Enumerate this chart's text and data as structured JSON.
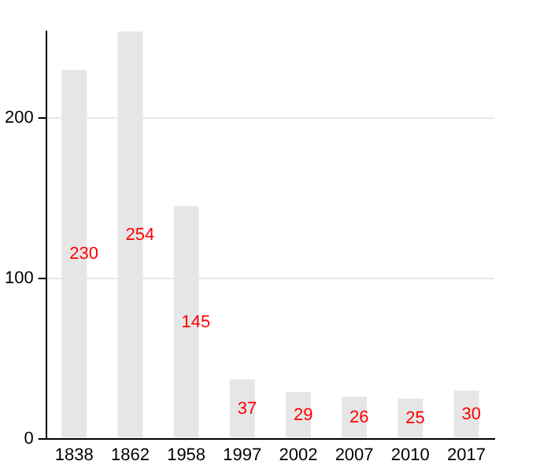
{
  "chart_data": {
    "type": "bar",
    "categories": [
      "1838",
      "1862",
      "1958",
      "1997",
      "2002",
      "2007",
      "2010",
      "2017"
    ],
    "values": [
      230,
      254,
      145,
      37,
      29,
      26,
      25,
      30
    ],
    "color": "#e6e6e6",
    "ylim": [
      0,
      254
    ],
    "yticks": [
      0,
      100,
      200
    ],
    "grid": "y",
    "data_labels": true
  }
}
